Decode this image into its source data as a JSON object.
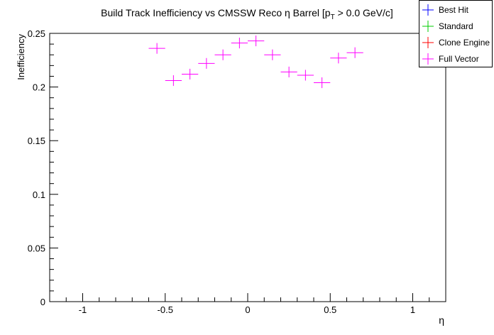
{
  "chart_data": {
    "type": "scatter",
    "title": "Build Track Inefficiency vs CMSSW Reco η Barrel [p",
    "title_sub": "T",
    "title_tail": " > 0.0 GeV/c]",
    "xlabel": "η",
    "ylabel": "Inefficiency",
    "xlim": [
      -1.2,
      1.2
    ],
    "ylim": [
      0,
      0.25
    ],
    "xticks": [
      -1,
      -0.5,
      0,
      0.5,
      1
    ],
    "xtick_labels": [
      "-1",
      "-0.5",
      "0",
      "0.5",
      "1"
    ],
    "yticks": [
      0,
      0.05,
      0.1,
      0.15,
      0.2,
      0.25
    ],
    "ytick_labels": [
      "0",
      "0.05",
      "0.1",
      "0.15",
      "0.2",
      "0.25"
    ],
    "grid": false,
    "legend_position": "top-right",
    "legend": [
      {
        "name": "Best Hit",
        "color": "#0000ff"
      },
      {
        "name": "Standard",
        "color": "#00cc00"
      },
      {
        "name": "Clone Engine",
        "color": "#ff0000"
      },
      {
        "name": "Full Vector",
        "color": "#ff00ff"
      }
    ],
    "series": [
      {
        "name": "Full Vector",
        "color": "#ff00ff",
        "x": [
          -0.55,
          -0.45,
          -0.35,
          -0.25,
          -0.15,
          -0.05,
          0.05,
          0.15,
          0.25,
          0.35,
          0.45,
          0.55,
          0.65
        ],
        "y": [
          0.236,
          0.206,
          0.212,
          0.222,
          0.23,
          0.241,
          0.243,
          0.23,
          0.214,
          0.211,
          0.204,
          0.227,
          0.232
        ],
        "x_err": 0.05,
        "y_err": 0.005
      }
    ]
  }
}
